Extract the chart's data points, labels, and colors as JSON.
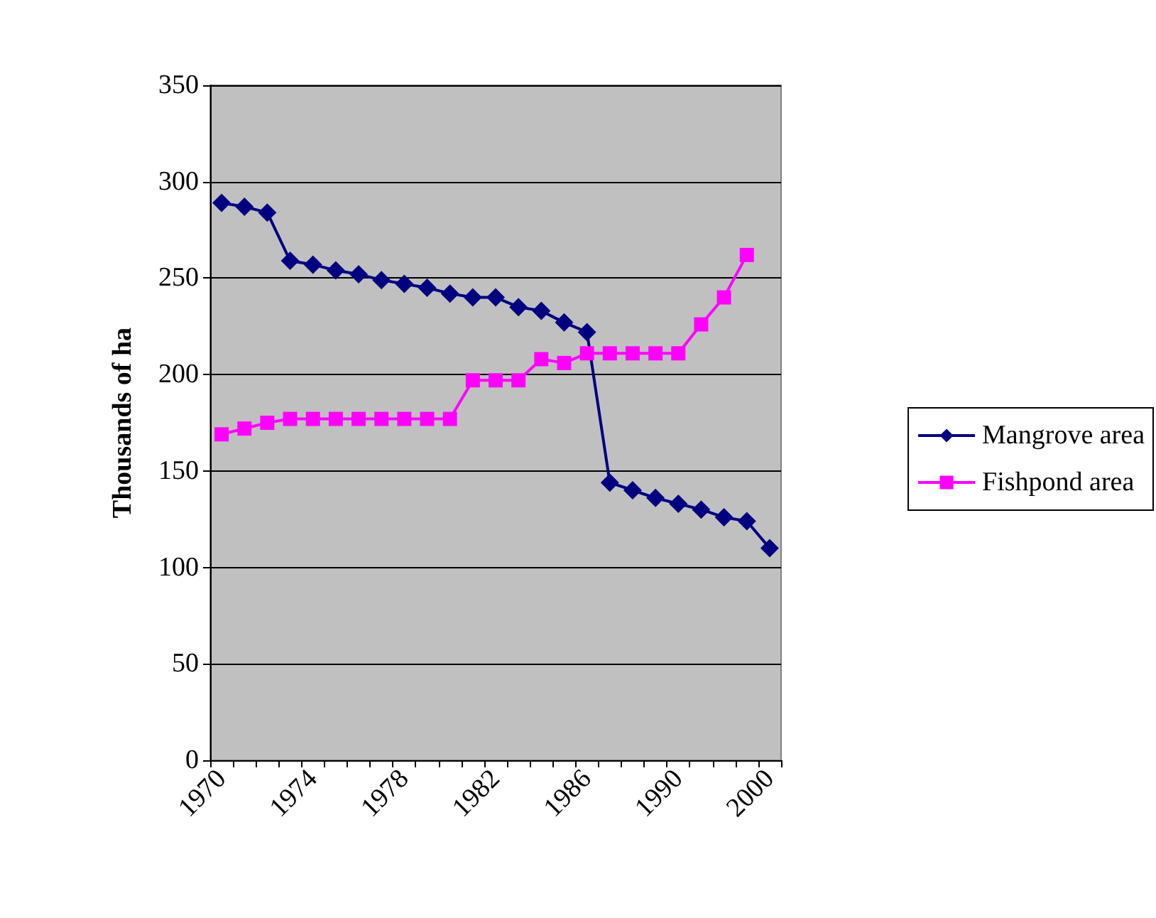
{
  "chart_data": {
    "type": "line",
    "ylabel": "Thousands of ha",
    "categories": [
      "1970",
      null,
      null,
      null,
      "1974",
      null,
      null,
      null,
      "1978",
      null,
      null,
      null,
      "1982",
      null,
      null,
      null,
      "1986",
      null,
      null,
      null,
      "1990",
      null,
      null,
      null,
      "2000"
    ],
    "series": [
      {
        "name": "Mangrove area",
        "color": "#000080",
        "marker": "diamond",
        "values": [
          289,
          287,
          284,
          259,
          257,
          254,
          252,
          249,
          247,
          245,
          242,
          240,
          240,
          235,
          233,
          227,
          222,
          144,
          140,
          136,
          133,
          130,
          126,
          124,
          110
        ]
      },
      {
        "name": "Fishpond area",
        "color": "#ff00ff",
        "marker": "square",
        "values": [
          169,
          172,
          175,
          177,
          177,
          177,
          177,
          177,
          177,
          177,
          177,
          197,
          197,
          197,
          208,
          206,
          211,
          211,
          211,
          211,
          211,
          226,
          240,
          262,
          null
        ]
      }
    ],
    "ylim": [
      0,
      350
    ],
    "yticks": [
      0,
      50,
      100,
      150,
      200,
      250,
      300,
      350
    ],
    "grid": "y",
    "legend": "right",
    "line_style": "solid"
  }
}
